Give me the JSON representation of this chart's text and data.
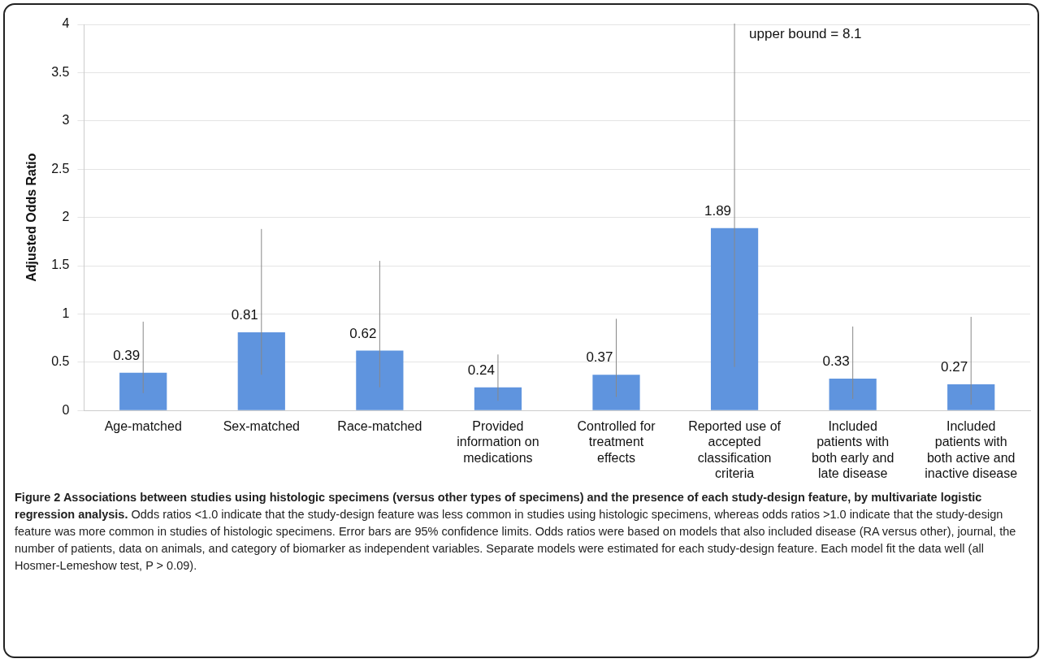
{
  "chart_data": {
    "type": "bar",
    "title": "Figure 2 Associations between studies using histologic specimens (versus other types of specimens) and the presence of each study-design feature, by multivariate logistic regression analysis.",
    "ylabel": "Adjusted Odds Ratio",
    "categories": [
      "Age-matched",
      "Sex-matched",
      "Race-matched",
      "Provided information on medications",
      "Controlled for treatment effects",
      "Reported use of accepted classification criteria",
      "Included patients with both early and late disease",
      "Included patients with both active and inactive disease"
    ],
    "values": [
      0.39,
      0.81,
      0.62,
      0.24,
      0.37,
      1.89,
      0.33,
      0.27
    ],
    "errors": [
      [
        0.18,
        0.92
      ],
      [
        0.37,
        1.88
      ],
      [
        0.24,
        1.55
      ],
      [
        0.1,
        0.58
      ],
      [
        0.14,
        0.95
      ],
      [
        0.45,
        8.1
      ],
      [
        0.12,
        0.87
      ],
      [
        0.06,
        0.97
      ]
    ],
    "color": "#5f94de",
    "data_labels": true,
    "grid": "y",
    "legend": false,
    "ylim": [
      0,
      4
    ],
    "yticks": [
      0,
      0.5,
      1,
      1.5,
      2,
      2.5,
      3,
      3.5,
      4
    ],
    "annotations": [
      {
        "text": "upper bound = 8.1",
        "x": "Reported use of accepted classification criteria",
        "y": 4
      },
      "Odds ratios <1.0 indicate that the study-design feature was less common in studies using histologic specimens, whereas odds ratios >1.0 indicate that the study-design feature was more common in studies of histologic specimens. Error bars are 95% confidence limits. Odds ratios were based on models that also included disease (RA versus other), journal, the number of patients, data on animals, and category of biomarker as independent variables. Separate models were estimated for each study-design feature. Each model fit the data well (all Hosmer-Lemeshow test, P > 0.09)."
    ]
  }
}
